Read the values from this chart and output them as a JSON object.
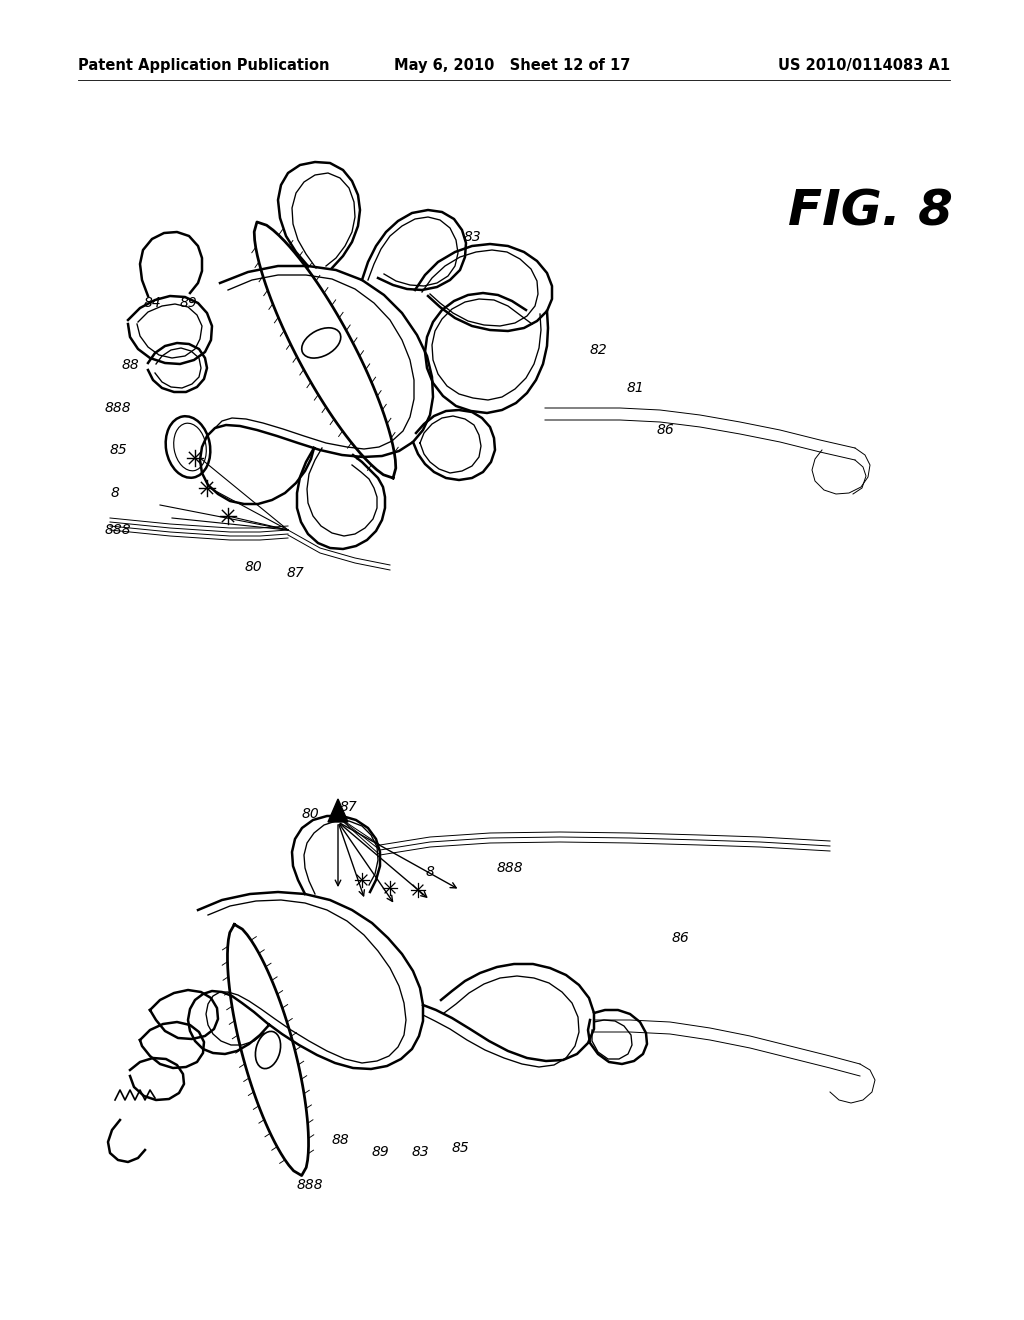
{
  "background_color": "#ffffff",
  "header_left": "Patent Application Publication",
  "header_mid": "May 6, 2010   Sheet 12 of 17",
  "header_right": "US 2010/0114083 A1",
  "fig_label": "FIG. 8",
  "header_fontsize": 10.5,
  "fig_label_fontsize": 36,
  "line_color": "#000000",
  "lw_thick": 1.8,
  "lw_med": 1.2,
  "lw_thin": 0.7,
  "label_fontsize": 10
}
